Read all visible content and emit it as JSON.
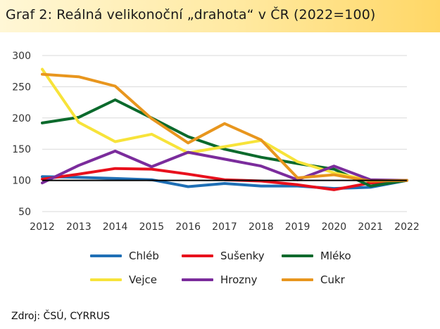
{
  "title": "Graf 2: Reálná velikonoční „drahota“ v ČR (2022=100)",
  "source": "Zdroj: ČSÚ, CYRRUS",
  "chart_data": {
    "type": "line",
    "title": "Graf 2: Reálná velikonoční „drahota“ v ČR (2022=100)",
    "x": [
      2012,
      2013,
      2014,
      2015,
      2016,
      2017,
      2018,
      2019,
      2020,
      2021,
      2022
    ],
    "ylim": [
      50,
      300
    ],
    "yticks": [
      50,
      100,
      150,
      200,
      250,
      300
    ],
    "grid": "horizontal",
    "legend_position": "bottom",
    "reference_line": {
      "y": 100,
      "color": "#000000"
    },
    "series": [
      {
        "name": "Chléb",
        "color": "#1f6fb5",
        "values": [
          106,
          105,
          103,
          101,
          90,
          95,
          91,
          91,
          87,
          89,
          100
        ]
      },
      {
        "name": "Sušenky",
        "color": "#e8101c",
        "values": [
          102,
          110,
          119,
          118,
          110,
          101,
          99,
          93,
          85,
          96,
          100
        ]
      },
      {
        "name": "Mléko",
        "color": "#0b6a2c",
        "values": [
          192,
          201,
          229,
          200,
          170,
          150,
          137,
          127,
          118,
          91,
          100
        ]
      },
      {
        "name": "Vejce",
        "color": "#f7e33a",
        "values": [
          278,
          193,
          162,
          174,
          144,
          154,
          164,
          130,
          112,
          100,
          100
        ]
      },
      {
        "name": "Hrozny",
        "color": "#7b2c9c",
        "values": [
          96,
          124,
          147,
          122,
          145,
          134,
          123,
          101,
          123,
          101,
          100
        ]
      },
      {
        "name": "Cukr",
        "color": "#e8961e",
        "values": [
          270,
          266,
          251,
          199,
          160,
          191,
          165,
          104,
          109,
          99,
          100
        ]
      }
    ]
  }
}
